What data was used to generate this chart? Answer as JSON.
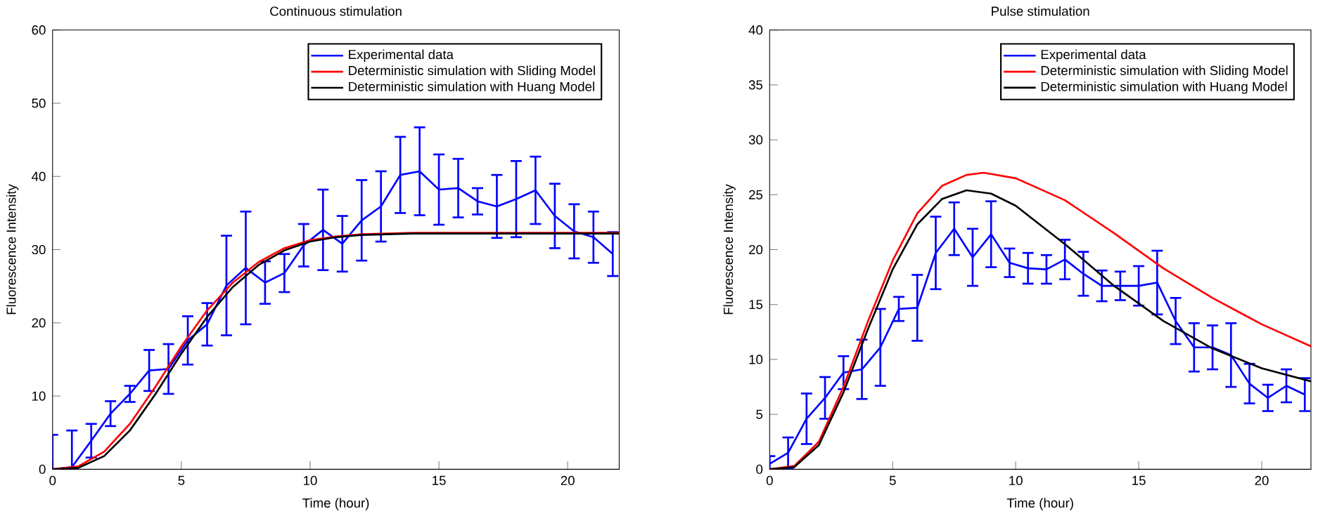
{
  "chart_data": [
    {
      "type": "line",
      "title": "Continuous stimulation",
      "xlabel": "Time (hour)",
      "ylabel": "Fluorescence Intensity",
      "xlim": [
        0,
        22
      ],
      "ylim": [
        0,
        60
      ],
      "xticks": [
        0,
        5,
        10,
        15,
        20
      ],
      "yticks": [
        0,
        10,
        20,
        30,
        40,
        50,
        60
      ],
      "legend": "top right",
      "marker": "none",
      "line_style": "solid",
      "series": [
        {
          "name": "Experimental data",
          "color": "#0000ff",
          "x": [
            0,
            0.75,
            1.5,
            2.25,
            3,
            3.75,
            4.5,
            5.25,
            6,
            6.75,
            7.5,
            8.25,
            9,
            9.75,
            10.5,
            11.25,
            12,
            12.75,
            13.5,
            14.25,
            15,
            15.75,
            16.5,
            17.25,
            18,
            18.75,
            19.5,
            20.25,
            21,
            21.75
          ],
          "values": [
            0,
            0.3,
            3.9,
            7.6,
            10.3,
            13.5,
            13.7,
            17.6,
            19.8,
            25.1,
            27.5,
            25.5,
            26.8,
            30.6,
            32.7,
            30.8,
            34,
            35.9,
            40.2,
            40.7,
            38.2,
            38.4,
            36.6,
            35.9,
            36.9,
            38.1,
            34.6,
            32.5,
            31.7,
            29.4
          ],
          "errors": [
            4.7,
            5,
            2.3,
            1.7,
            1.1,
            2.8,
            3.4,
            3.3,
            2.9,
            6.8,
            7.7,
            2.9,
            2.6,
            2.9,
            5.5,
            3.8,
            5.5,
            4.8,
            5.2,
            6,
            4.8,
            4,
            1.8,
            4.3,
            5.2,
            4.6,
            4.4,
            3.7,
            3.5,
            3
          ]
        },
        {
          "name": "Deterministic simulation with Sliding Model",
          "color": "#ff0000",
          "x": [
            0,
            1,
            2,
            3,
            4,
            5,
            6,
            7,
            8,
            9,
            10,
            11,
            12,
            14,
            18,
            22
          ],
          "values": [
            0,
            0.4,
            2.4,
            6.2,
            11.3,
            16.8,
            21.7,
            25.5,
            28.3,
            30.2,
            31.3,
            31.8,
            32.1,
            32.3,
            32.3,
            32.3
          ]
        },
        {
          "name": "Deterministic simulation with Huang Model",
          "color": "#000000",
          "x": [
            0,
            1,
            2,
            3,
            4,
            5,
            6,
            7,
            8,
            9,
            10,
            11,
            12,
            14,
            22
          ],
          "values": [
            0,
            0.2,
            1.8,
            5.3,
            10.3,
            15.8,
            20.8,
            24.9,
            27.9,
            29.9,
            31.1,
            31.7,
            32,
            32.2,
            32.2
          ]
        }
      ]
    },
    {
      "type": "line",
      "title": "Pulse stimulation",
      "xlabel": "Time (hour)",
      "ylabel": "Fluorescence Intensity",
      "xlim": [
        0,
        22
      ],
      "ylim": [
        0,
        40
      ],
      "xticks": [
        0,
        5,
        10,
        15,
        20
      ],
      "yticks": [
        0,
        5,
        10,
        15,
        20,
        25,
        30,
        35,
        40
      ],
      "legend": "top right",
      "marker": "none",
      "line_style": "solid",
      "series": [
        {
          "name": "Experimental data",
          "color": "#0000ff",
          "x": [
            0,
            0.75,
            1.5,
            2.25,
            3,
            3.75,
            4.5,
            5.25,
            6,
            6.75,
            7.5,
            8.25,
            9,
            9.75,
            10.5,
            11.25,
            12,
            12.75,
            13.5,
            14.25,
            15,
            15.75,
            16.5,
            17.25,
            18,
            18.75,
            19.5,
            20.25,
            21,
            21.75
          ],
          "values": [
            0.5,
            1.5,
            4.6,
            6.5,
            8.8,
            9.1,
            11.1,
            14.6,
            14.7,
            19.7,
            21.9,
            19.3,
            21.4,
            18.8,
            18.3,
            18.2,
            19.1,
            17.8,
            16.7,
            16.7,
            16.7,
            17,
            13.5,
            11.1,
            11.1,
            10.4,
            7.8,
            6.5,
            7.6,
            6.8
          ],
          "errors": [
            0.7,
            1.4,
            2.3,
            1.9,
            1.5,
            2.7,
            3.5,
            1.1,
            3,
            3.3,
            2.4,
            2.6,
            3,
            1.3,
            1.4,
            1.3,
            1.8,
            2,
            1.4,
            1.3,
            1.8,
            2.9,
            2.1,
            2.2,
            2,
            2.9,
            1.8,
            1.2,
            1.5,
            1.5
          ]
        },
        {
          "name": "Deterministic simulation with Sliding Model",
          "color": "#ff0000",
          "x": [
            0,
            1,
            2,
            3,
            4,
            5,
            6,
            7,
            8,
            8.7,
            10,
            12,
            14,
            16,
            18,
            20,
            22
          ],
          "values": [
            0,
            0.3,
            2.5,
            7.5,
            13.5,
            19,
            23.3,
            25.8,
            26.8,
            27,
            26.5,
            24.5,
            21.5,
            18.3,
            15.6,
            13.2,
            11.2
          ]
        },
        {
          "name": "Deterministic simulation with Huang Model",
          "color": "#000000",
          "x": [
            0,
            1,
            2,
            3,
            4,
            5,
            6,
            7,
            8,
            9,
            10,
            12,
            14,
            16,
            18,
            20,
            22
          ],
          "values": [
            0,
            0.2,
            2.2,
            7,
            12.8,
            18.2,
            22.3,
            24.6,
            25.4,
            25.1,
            24,
            20.5,
            16.7,
            13.5,
            11,
            9.2,
            8
          ]
        }
      ]
    }
  ]
}
